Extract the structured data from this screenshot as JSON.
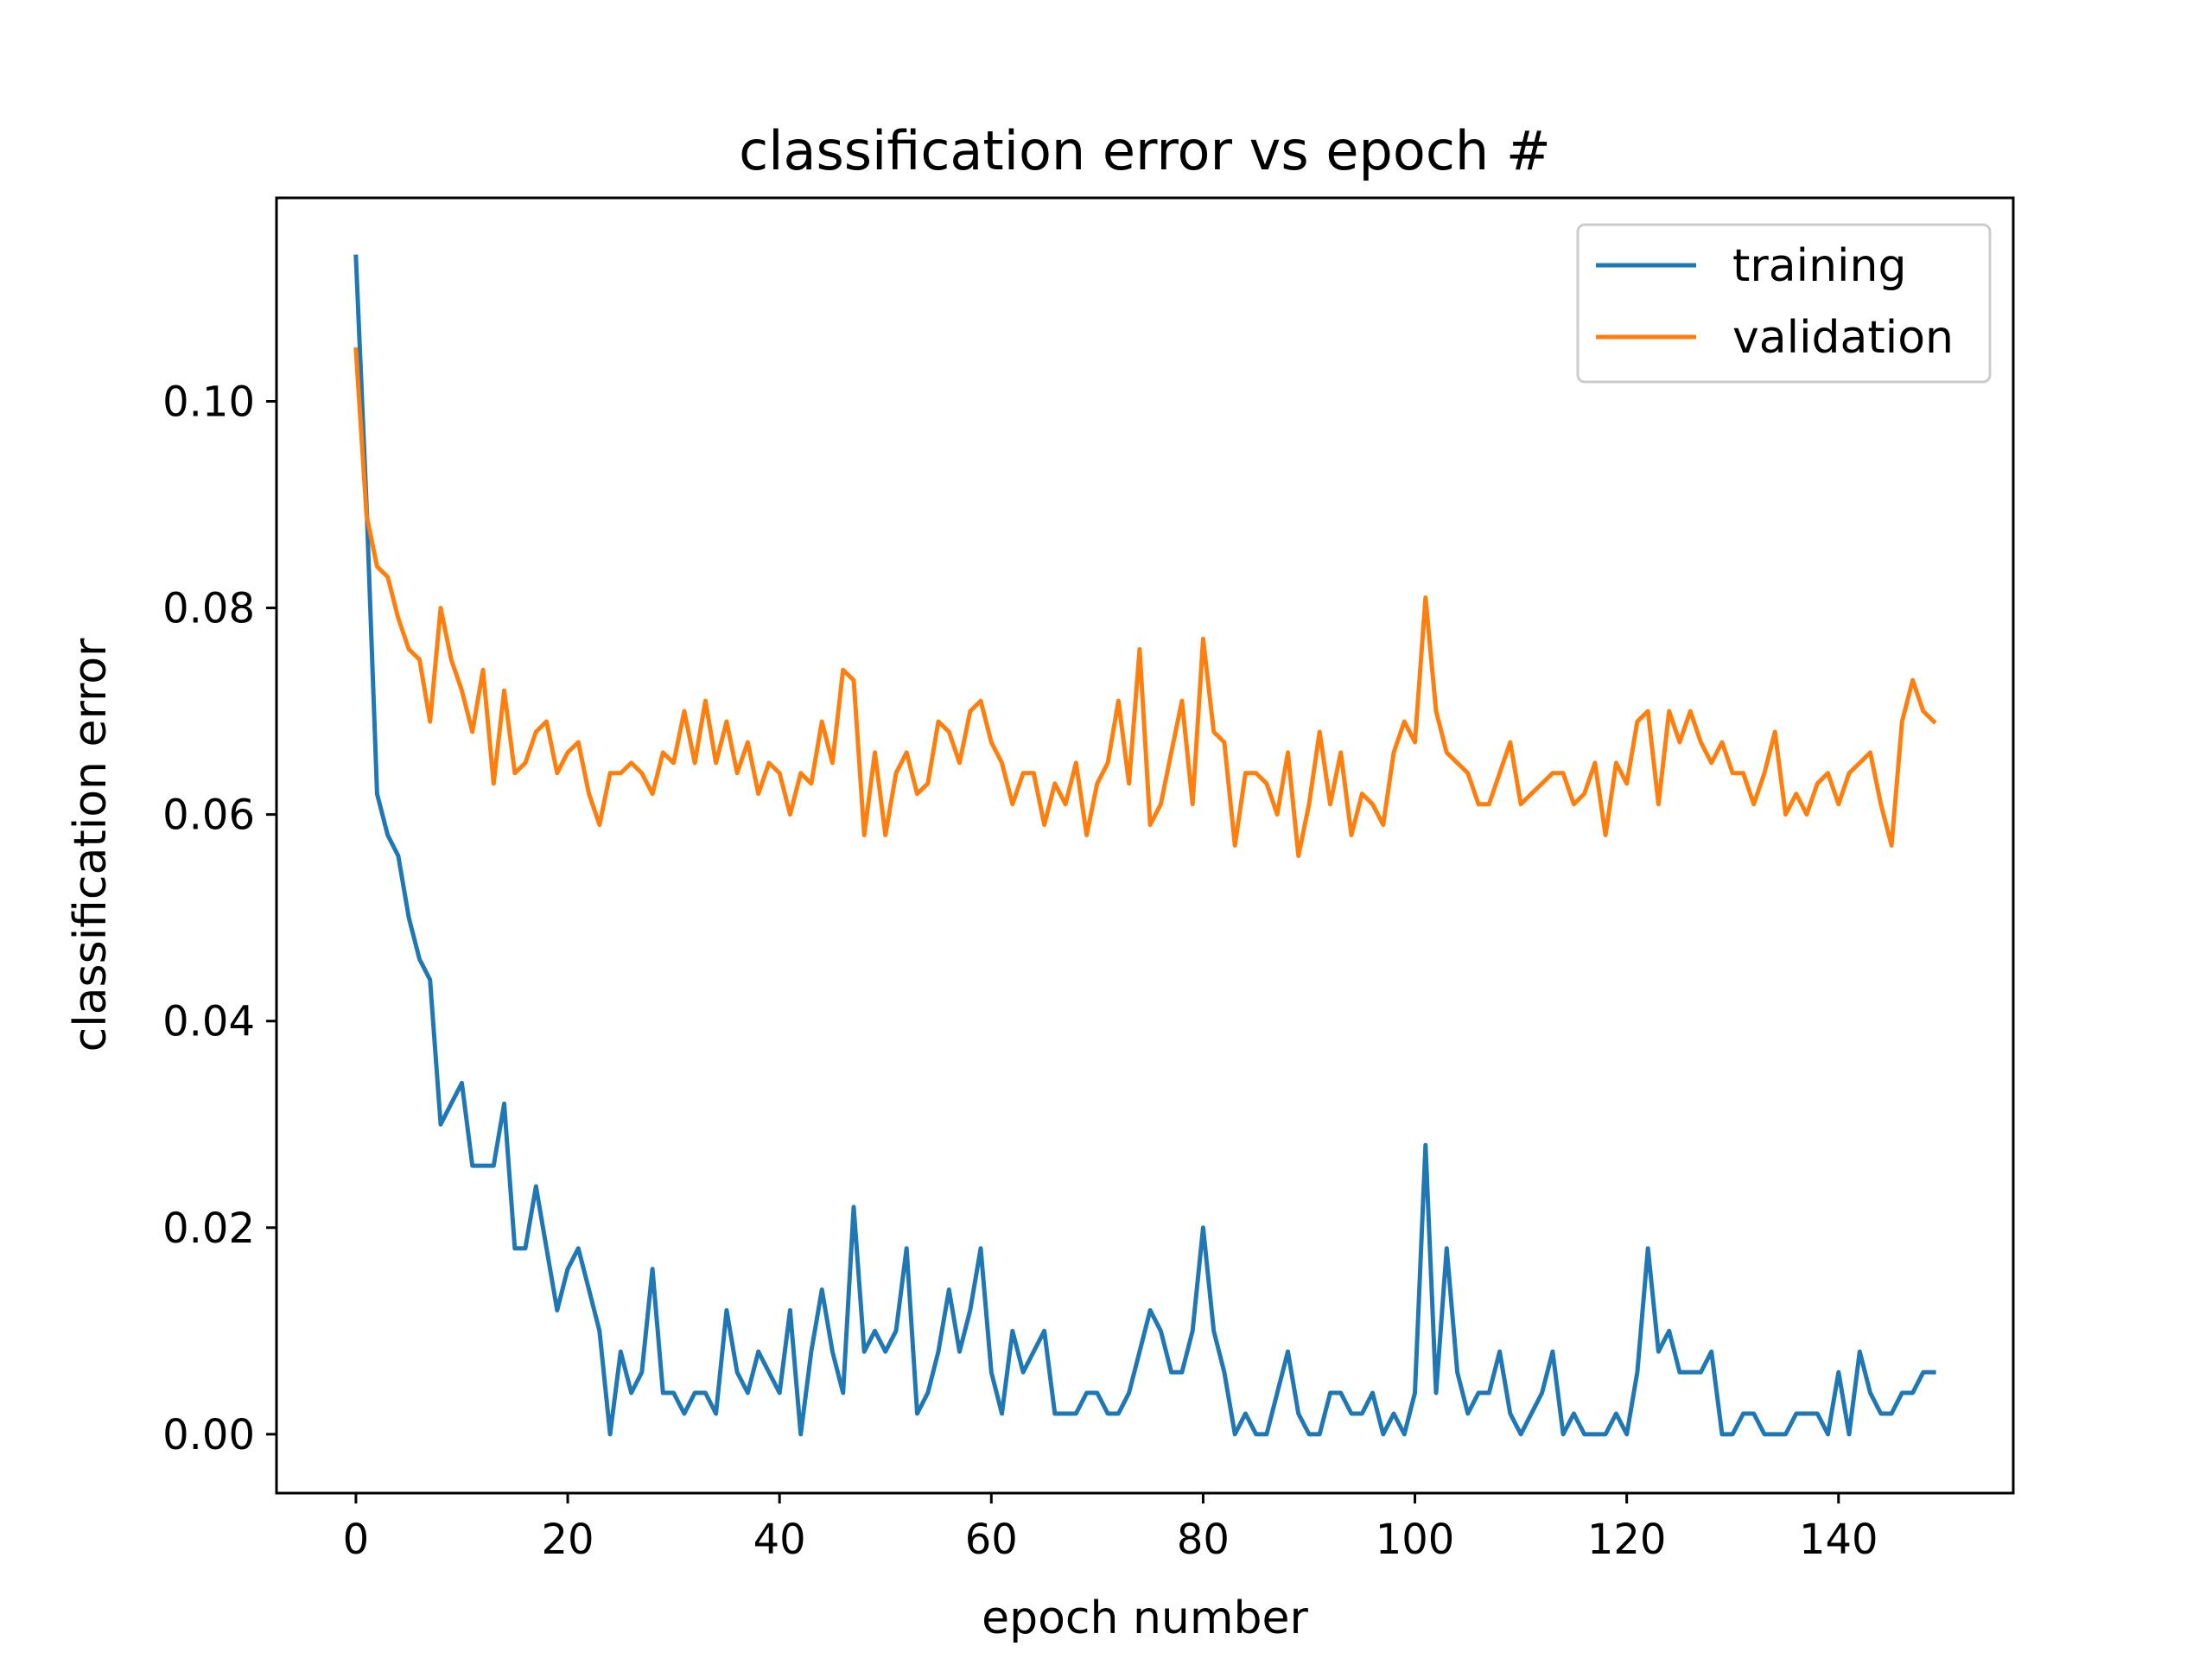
{
  "chart_data": {
    "type": "line",
    "title": "classification error vs epoch #",
    "xlabel": "epoch number",
    "ylabel": "classification error",
    "xlim": [
      -7.5,
      156.5
    ],
    "ylim": [
      -0.0057,
      0.1197
    ],
    "xticks": [
      0,
      20,
      40,
      60,
      80,
      100,
      120,
      140
    ],
    "xtick_labels": [
      "0",
      "20",
      "40",
      "60",
      "80",
      "100",
      "120",
      "140"
    ],
    "yticks": [
      0.0,
      0.02,
      0.04,
      0.06,
      0.08,
      0.1
    ],
    "ytick_labels": [
      "0.00",
      "0.02",
      "0.04",
      "0.06",
      "0.08",
      "0.10"
    ],
    "grid": false,
    "legend": "top-right",
    "x": [
      0,
      1,
      2,
      3,
      4,
      5,
      6,
      7,
      8,
      9,
      10,
      11,
      12,
      13,
      14,
      15,
      16,
      17,
      18,
      19,
      20,
      21,
      22,
      23,
      24,
      25,
      26,
      27,
      28,
      29,
      30,
      31,
      32,
      33,
      34,
      35,
      36,
      37,
      38,
      39,
      40,
      41,
      42,
      43,
      44,
      45,
      46,
      47,
      48,
      49,
      50,
      51,
      52,
      53,
      54,
      55,
      56,
      57,
      58,
      59,
      60,
      61,
      62,
      63,
      64,
      65,
      66,
      67,
      68,
      69,
      70,
      71,
      72,
      73,
      74,
      75,
      76,
      77,
      78,
      79,
      80,
      81,
      82,
      83,
      84,
      85,
      86,
      87,
      88,
      89,
      90,
      91,
      92,
      93,
      94,
      95,
      96,
      97,
      98,
      99,
      100,
      101,
      102,
      103,
      104,
      105,
      106,
      107,
      108,
      109,
      110,
      111,
      112,
      113,
      114,
      115,
      116,
      117,
      118,
      119,
      120,
      121,
      122,
      123,
      124,
      125,
      126,
      127,
      128,
      129,
      130,
      131,
      132,
      133,
      134,
      135,
      136,
      137,
      138,
      139,
      140,
      141,
      142,
      143,
      144,
      145,
      146,
      147,
      148,
      149
    ],
    "series": [
      {
        "name": "training",
        "color": "#1f77b4",
        "values": [
          0.114,
          0.09,
          0.062,
          0.058,
          0.056,
          0.05,
          0.046,
          0.044,
          0.03,
          0.032,
          0.034,
          0.026,
          0.026,
          0.026,
          0.032,
          0.018,
          0.018,
          0.024,
          0.018,
          0.012,
          0.016,
          0.018,
          0.014,
          0.01,
          0.0,
          0.008,
          0.004,
          0.006,
          0.016,
          0.004,
          0.004,
          0.002,
          0.004,
          0.004,
          0.002,
          0.012,
          0.006,
          0.004,
          0.008,
          0.006,
          0.004,
          0.012,
          0.0,
          0.008,
          0.014,
          0.008,
          0.004,
          0.022,
          0.008,
          0.01,
          0.008,
          0.01,
          0.018,
          0.002,
          0.004,
          0.008,
          0.014,
          0.008,
          0.012,
          0.018,
          0.006,
          0.002,
          0.01,
          0.006,
          0.008,
          0.01,
          0.002,
          0.002,
          0.002,
          0.004,
          0.004,
          0.002,
          0.002,
          0.004,
          0.008,
          0.012,
          0.01,
          0.006,
          0.006,
          0.01,
          0.02,
          0.01,
          0.006,
          0.0,
          0.002,
          0.0,
          0.0,
          0.004,
          0.008,
          0.002,
          0.0,
          0.0,
          0.004,
          0.004,
          0.002,
          0.002,
          0.004,
          0.0,
          0.002,
          0.0,
          0.004,
          0.028,
          0.004,
          0.018,
          0.006,
          0.002,
          0.004,
          0.004,
          0.008,
          0.002,
          0.0,
          0.002,
          0.004,
          0.008,
          0.0,
          0.002,
          0.0,
          0.0,
          0.0,
          0.002,
          0.0,
          0.006,
          0.018,
          0.008,
          0.01,
          0.006,
          0.006,
          0.006,
          0.008,
          0.0,
          0.0,
          0.002,
          0.002,
          0.0,
          0.0,
          0.0,
          0.002,
          0.002,
          0.002,
          0.0,
          0.006,
          0.0,
          0.008,
          0.004,
          0.002,
          0.002,
          0.004,
          0.004,
          0.006,
          0.006
        ]
      },
      {
        "name": "validation",
        "color": "#ff7f0e",
        "values": [
          0.105,
          0.089,
          0.084,
          0.083,
          0.079,
          0.076,
          0.075,
          0.069,
          0.08,
          0.075,
          0.072,
          0.068,
          0.074,
          0.063,
          0.072,
          0.064,
          0.065,
          0.068,
          0.069,
          0.064,
          0.066,
          0.067,
          0.062,
          0.059,
          0.064,
          0.064,
          0.065,
          0.064,
          0.062,
          0.066,
          0.065,
          0.07,
          0.065,
          0.071,
          0.065,
          0.069,
          0.064,
          0.067,
          0.062,
          0.065,
          0.064,
          0.06,
          0.064,
          0.063,
          0.069,
          0.065,
          0.074,
          0.073,
          0.058,
          0.066,
          0.058,
          0.064,
          0.066,
          0.062,
          0.063,
          0.069,
          0.068,
          0.065,
          0.07,
          0.071,
          0.067,
          0.065,
          0.061,
          0.064,
          0.064,
          0.059,
          0.063,
          0.061,
          0.065,
          0.058,
          0.063,
          0.065,
          0.071,
          0.063,
          0.076,
          0.059,
          0.061,
          0.066,
          0.071,
          0.061,
          0.077,
          0.068,
          0.067,
          0.057,
          0.064,
          0.064,
          0.063,
          0.06,
          0.066,
          0.056,
          0.061,
          0.068,
          0.061,
          0.066,
          0.058,
          0.062,
          0.061,
          0.059,
          0.066,
          0.069,
          0.067,
          0.081,
          0.07,
          0.066,
          0.065,
          0.064,
          0.061,
          0.061,
          0.064,
          0.067,
          0.061,
          0.062,
          0.063,
          0.064,
          0.064,
          0.061,
          0.062,
          0.065,
          0.058,
          0.065,
          0.063,
          0.069,
          0.07,
          0.061,
          0.07,
          0.067,
          0.07,
          0.067,
          0.065,
          0.067,
          0.064,
          0.064,
          0.061,
          0.064,
          0.068,
          0.06,
          0.062,
          0.06,
          0.063,
          0.064,
          0.061,
          0.064,
          0.065,
          0.066,
          0.061,
          0.057,
          0.069,
          0.073,
          0.07,
          0.069
        ]
      }
    ]
  }
}
